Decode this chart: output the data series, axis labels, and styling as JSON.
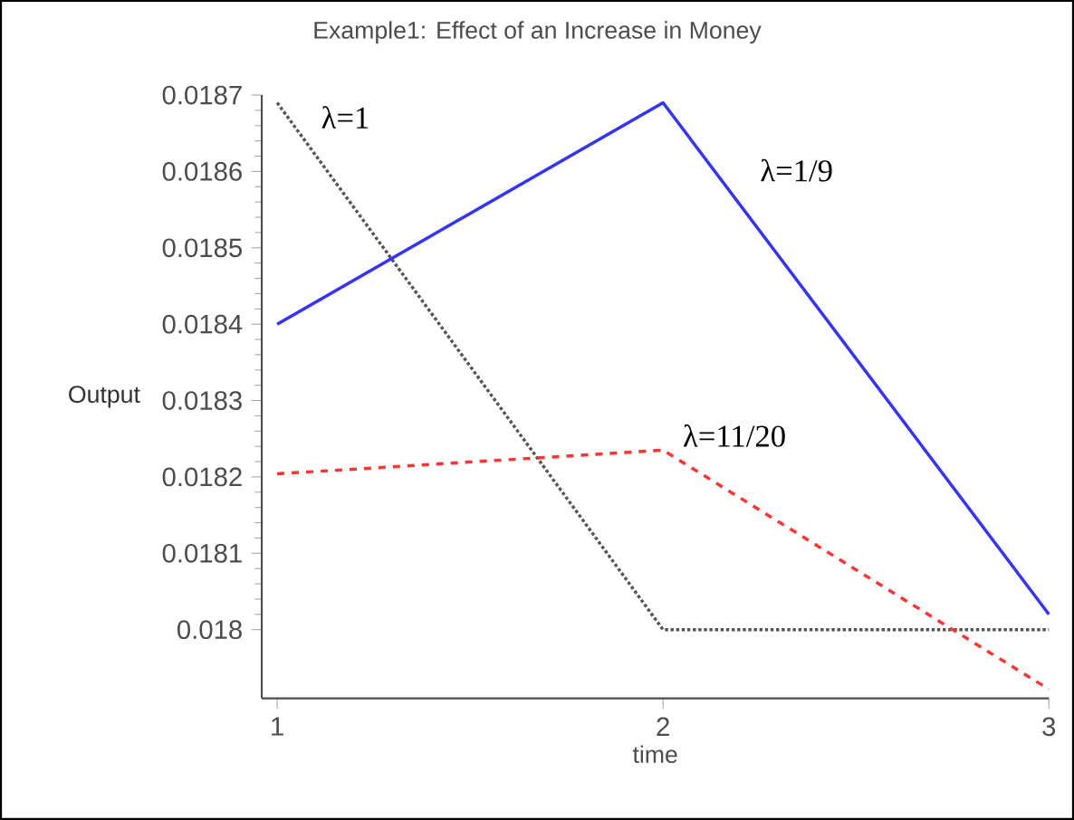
{
  "chart_data": {
    "type": "line",
    "title": "Example1: Effect of an Increase in Money",
    "xlabel": "time",
    "ylabel": "Output",
    "x": [
      1,
      2,
      3
    ],
    "xlim": [
      0.96,
      3
    ],
    "xticks": [
      1,
      2,
      3
    ],
    "ylim": [
      0.01791,
      0.0187
    ],
    "yticks": [
      0.018,
      0.0181,
      0.0182,
      0.0183,
      0.0184,
      0.0185,
      0.0186,
      0.0187
    ],
    "grid": false,
    "legend": false,
    "marker": "none",
    "series": [
      {
        "name": "λ=1",
        "color": "#555555",
        "line_style": "dotted",
        "values": [
          0.01869,
          0.018,
          0.018
        ]
      },
      {
        "name": "λ=1/9",
        "color": "#3333ff",
        "line_style": "solid",
        "values": [
          0.0184,
          0.01869,
          0.01802
        ]
      },
      {
        "name": "λ=11/20",
        "color": "#ff3333",
        "line_style": "dashed",
        "values": [
          0.018204,
          0.018235,
          0.017922
        ]
      }
    ]
  }
}
